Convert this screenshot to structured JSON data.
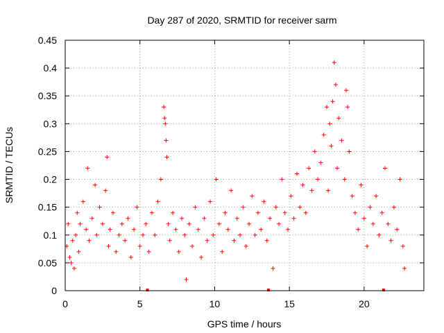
{
  "chart_data": {
    "type": "scatter",
    "title": "Day 287 of 2020, SRMTID for receiver sarm",
    "xlabel": "GPS time / hours",
    "ylabel": "SRMTID / TECUs",
    "xlim": [
      0,
      24
    ],
    "ylim": [
      0,
      0.45
    ],
    "xticks": [
      0,
      5,
      10,
      15,
      20
    ],
    "xtick_labels": [
      "0",
      "5",
      "10",
      "15",
      "20"
    ],
    "yticks": [
      0,
      0.05,
      0.1,
      0.15,
      0.2,
      0.25,
      0.3,
      0.35,
      0.4,
      0.45
    ],
    "ytick_labels": [
      "0",
      "0.05",
      "0.1",
      "0.15",
      "0.2",
      "0.25",
      "0.3",
      "0.35",
      "0.4",
      "0.45"
    ],
    "grid": true,
    "marker": "+",
    "color": "#ff0000",
    "series": [
      {
        "name": "SRMTID",
        "points": [
          [
            0.1,
            0.08
          ],
          [
            0.2,
            0.12
          ],
          [
            0.3,
            0.06
          ],
          [
            0.4,
            0.05
          ],
          [
            0.5,
            0.09
          ],
          [
            0.6,
            0.04
          ],
          [
            0.7,
            0.1
          ],
          [
            0.8,
            0.14
          ],
          [
            0.9,
            0.07
          ],
          [
            1.0,
            0.12
          ],
          [
            1.2,
            0.16
          ],
          [
            1.4,
            0.11
          ],
          [
            1.5,
            0.22
          ],
          [
            1.6,
            0.09
          ],
          [
            1.8,
            0.13
          ],
          [
            2.0,
            0.19
          ],
          [
            2.1,
            0.1
          ],
          [
            2.3,
            0.15
          ],
          [
            2.5,
            0.12
          ],
          [
            2.7,
            0.18
          ],
          [
            2.8,
            0.24
          ],
          [
            2.9,
            0.08
          ],
          [
            3.0,
            0.11
          ],
          [
            3.2,
            0.14
          ],
          [
            3.4,
            0.07
          ],
          [
            3.6,
            0.1
          ],
          [
            3.8,
            0.12
          ],
          [
            4.0,
            0.09
          ],
          [
            4.2,
            0.13
          ],
          [
            4.4,
            0.06
          ],
          [
            4.6,
            0.11
          ],
          [
            4.8,
            0.15
          ],
          [
            5.0,
            0.08
          ],
          [
            5.2,
            0.1
          ],
          [
            5.4,
            0.12
          ],
          [
            5.6,
            0.07
          ],
          [
            5.8,
            0.14
          ],
          [
            6.0,
            0.1
          ],
          [
            6.2,
            0.16
          ],
          [
            6.4,
            0.2
          ],
          [
            6.6,
            0.33
          ],
          [
            6.65,
            0.31
          ],
          [
            6.7,
            0.3
          ],
          [
            6.75,
            0.27
          ],
          [
            6.8,
            0.24
          ],
          [
            6.9,
            0.12
          ],
          [
            7.0,
            0.09
          ],
          [
            7.2,
            0.14
          ],
          [
            7.4,
            0.11
          ],
          [
            7.6,
            0.07
          ],
          [
            7.8,
            0.13
          ],
          [
            8.0,
            0.1
          ],
          [
            8.1,
            0.02
          ],
          [
            8.3,
            0.12
          ],
          [
            8.5,
            0.08
          ],
          [
            8.7,
            0.15
          ],
          [
            8.9,
            0.11
          ],
          [
            9.1,
            0.06
          ],
          [
            9.3,
            0.13
          ],
          [
            9.5,
            0.09
          ],
          [
            9.7,
            0.16
          ],
          [
            9.9,
            0.1
          ],
          [
            10.1,
            0.2
          ],
          [
            10.3,
            0.12
          ],
          [
            10.5,
            0.07
          ],
          [
            10.7,
            0.14
          ],
          [
            10.9,
            0.11
          ],
          [
            11.1,
            0.18
          ],
          [
            11.3,
            0.09
          ],
          [
            11.5,
            0.13
          ],
          [
            11.7,
            0.1
          ],
          [
            11.9,
            0.15
          ],
          [
            12.1,
            0.08
          ],
          [
            12.3,
            0.12
          ],
          [
            12.5,
            0.17
          ],
          [
            12.7,
            0.1
          ],
          [
            12.9,
            0.14
          ],
          [
            13.1,
            0.11
          ],
          [
            13.3,
            0.16
          ],
          [
            13.5,
            0.09
          ],
          [
            13.7,
            0.13
          ],
          [
            13.9,
            0.04
          ],
          [
            14.1,
            0.15
          ],
          [
            14.3,
            0.12
          ],
          [
            14.5,
            0.2
          ],
          [
            14.7,
            0.14
          ],
          [
            14.9,
            0.11
          ],
          [
            15.1,
            0.17
          ],
          [
            15.3,
            0.13
          ],
          [
            15.5,
            0.21
          ],
          [
            15.7,
            0.15
          ],
          [
            15.9,
            0.19
          ],
          [
            16.1,
            0.14
          ],
          [
            16.3,
            0.22
          ],
          [
            16.5,
            0.18
          ],
          [
            16.7,
            0.25
          ],
          [
            16.9,
            0.2
          ],
          [
            17.1,
            0.23
          ],
          [
            17.3,
            0.28
          ],
          [
            17.5,
            0.33
          ],
          [
            17.6,
            0.18
          ],
          [
            17.7,
            0.3
          ],
          [
            17.8,
            0.26
          ],
          [
            17.9,
            0.34
          ],
          [
            18.0,
            0.41
          ],
          [
            18.1,
            0.37
          ],
          [
            18.2,
            0.22
          ],
          [
            18.3,
            0.31
          ],
          [
            18.5,
            0.27
          ],
          [
            18.7,
            0.2
          ],
          [
            18.8,
            0.36
          ],
          [
            18.9,
            0.33
          ],
          [
            19.0,
            0.25
          ],
          [
            19.2,
            0.17
          ],
          [
            19.4,
            0.14
          ],
          [
            19.6,
            0.11
          ],
          [
            19.8,
            0.19
          ],
          [
            20.0,
            0.13
          ],
          [
            20.2,
            0.08
          ],
          [
            20.4,
            0.15
          ],
          [
            20.6,
            0.12
          ],
          [
            20.8,
            0.17
          ],
          [
            21.0,
            0.1
          ],
          [
            21.2,
            0.14
          ],
          [
            21.4,
            0.22
          ],
          [
            21.6,
            0.12
          ],
          [
            21.8,
            0.09
          ],
          [
            22.0,
            0.15
          ],
          [
            22.2,
            0.11
          ],
          [
            22.4,
            0.2
          ],
          [
            22.6,
            0.08
          ],
          [
            22.7,
            0.04
          ]
        ]
      }
    ],
    "markers_on_axis": [
      5.5,
      13.6,
      21.3
    ]
  }
}
